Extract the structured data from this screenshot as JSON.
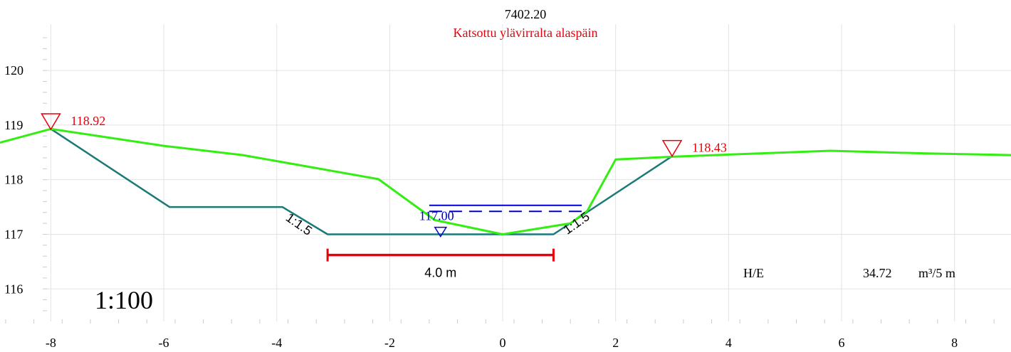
{
  "title": "7402.20",
  "subtitle": "Katsottu ylävirralta alaspäin",
  "scale_label": "1:100",
  "volume": {
    "label": "H/E",
    "value": "34.72",
    "unit": "m³/5 m"
  },
  "width_label": "4.0 m",
  "water_level_label": "117.00",
  "colors": {
    "ground": "#33ee11",
    "design": "#1a7a78",
    "marker": "#e8000b",
    "water": "#0000cc",
    "grid": "#e3e3e3"
  },
  "chart_data": {
    "type": "line",
    "xlim": [
      -8.9,
      9
    ],
    "ylim": [
      115.3,
      120.9
    ],
    "x_ticks": [
      -8,
      -6,
      -4,
      -2,
      0,
      2,
      4,
      6,
      8
    ],
    "y_ticks": [
      116,
      117,
      118,
      119,
      120
    ],
    "grid": true,
    "series": [
      {
        "key": "ground",
        "points": [
          [
            -8.9,
            118.68
          ],
          [
            -8.0,
            118.93
          ],
          [
            -6.0,
            118.62
          ],
          [
            -4.6,
            118.45
          ],
          [
            -2.2,
            118.01
          ],
          [
            -1.2,
            117.26
          ],
          [
            0.0,
            117.0
          ],
          [
            1.2,
            117.2
          ],
          [
            1.5,
            117.43
          ],
          [
            2.0,
            118.37
          ],
          [
            3.0,
            118.42
          ],
          [
            5.8,
            118.53
          ],
          [
            7.5,
            118.48
          ],
          [
            9.0,
            118.45
          ]
        ]
      },
      {
        "key": "design",
        "points": [
          [
            -8.0,
            118.93
          ],
          [
            -5.9,
            117.5
          ],
          [
            -3.9,
            117.5
          ],
          [
            -3.1,
            117.0
          ],
          [
            0.9,
            117.0
          ],
          [
            3.0,
            118.43
          ]
        ]
      }
    ],
    "markers": [
      {
        "x": -8.0,
        "y": 118.92,
        "label": "118.92"
      },
      {
        "x": 3.0,
        "y": 118.43,
        "label": "118.43"
      }
    ],
    "slope_labels": [
      {
        "text": "1:1.5",
        "x": -3.65,
        "y": 117.12,
        "angle": 35
      },
      {
        "text": "1:1.5",
        "x": 1.35,
        "y": 117.14,
        "angle": -35
      }
    ],
    "water_levels": [
      {
        "y": 117.53,
        "x_from": -1.3,
        "x_to": 1.4,
        "style": "solid"
      },
      {
        "y": 117.42,
        "x_from": -1.3,
        "x_to": 1.4,
        "style": "dashed"
      }
    ],
    "water_marker": {
      "x": -1.1,
      "y": 117.05
    },
    "width_bar": {
      "x_from": -3.1,
      "x_to": 0.9,
      "y": 116.62
    }
  }
}
